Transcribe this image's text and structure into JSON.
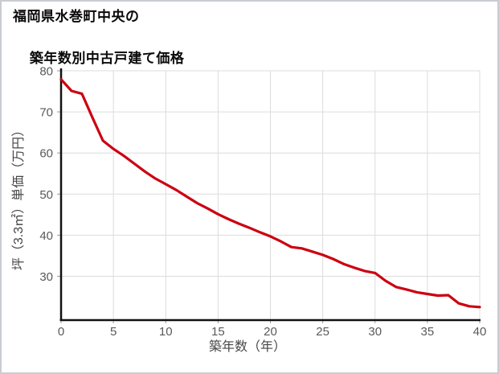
{
  "page": {
    "title_line1": "福岡県水巻町中央の",
    "title_line2": "築年数別中古戸建て価格"
  },
  "chart_data": {
    "type": "line",
    "title": "福岡県水巻町中央の築年数別中古戸建て価格",
    "xlabel": "築年数（年）",
    "ylabel": "坪（3.3㎡）単価（万円）",
    "x": [
      0,
      1,
      2,
      3,
      4,
      5,
      6,
      7,
      8,
      9,
      10,
      11,
      12,
      13,
      14,
      15,
      16,
      17,
      18,
      19,
      20,
      21,
      22,
      23,
      24,
      25,
      26,
      27,
      28,
      29,
      30,
      31,
      32,
      33,
      34,
      35,
      36,
      37,
      38,
      39,
      40
    ],
    "values": [
      77.9,
      75.1,
      74.4,
      68.6,
      63.0,
      61.0,
      59.3,
      57.4,
      55.5,
      53.8,
      52.4,
      51.0,
      49.4,
      47.8,
      46.5,
      45.1,
      43.9,
      42.8,
      41.8,
      40.7,
      39.7,
      38.5,
      37.1,
      36.8,
      36.0,
      35.2,
      34.2,
      33.0,
      32.1,
      31.3,
      30.8,
      28.9,
      27.4,
      26.8,
      26.1,
      25.7,
      25.3,
      25.4,
      23.4,
      22.7,
      22.5
    ],
    "xticks": [
      0,
      5,
      10,
      15,
      20,
      25,
      30,
      35,
      40
    ],
    "yticks": [
      30,
      40,
      50,
      60,
      70,
      80
    ],
    "xlim": [
      0,
      40
    ],
    "ylim": [
      20,
      80
    ],
    "grid": true,
    "legend": "none",
    "line_color": "#cc0011",
    "axis_color": "#111111",
    "grid_color": "#dcdcdc",
    "tick_color": "#999999",
    "tick_label_color": "#595959",
    "axis_label_color": "#474747"
  }
}
